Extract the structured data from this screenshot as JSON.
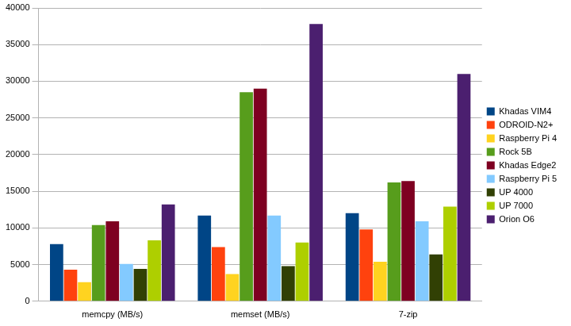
{
  "chart_data": {
    "type": "bar",
    "categories": [
      "memcpy (MB/s)",
      "memset (MB/s)",
      "7-zip"
    ],
    "series": [
      {
        "name": "Khadas VIM4",
        "color": "#004586",
        "values": [
          7800,
          11700,
          12000
        ]
      },
      {
        "name": "ODROID-N2+",
        "color": "#ff420e",
        "values": [
          4300,
          7400,
          9800
        ]
      },
      {
        "name": "Raspberry Pi 4",
        "color": "#ffd320",
        "values": [
          2600,
          3700,
          5400
        ]
      },
      {
        "name": "Rock 5B",
        "color": "#579d1c",
        "values": [
          10400,
          28500,
          16200
        ]
      },
      {
        "name": "Khadas Edge2",
        "color": "#7e0021",
        "values": [
          10900,
          29000,
          16400
        ]
      },
      {
        "name": "Raspberry Pi 5",
        "color": "#83caff",
        "values": [
          5100,
          11700,
          10900
        ]
      },
      {
        "name": "UP 4000",
        "color": "#314004",
        "values": [
          4400,
          4800,
          6400
        ]
      },
      {
        "name": "UP 7000",
        "color": "#aecf00",
        "values": [
          8300,
          8000,
          12900
        ]
      },
      {
        "name": "Orion O6",
        "color": "#4b1f6f",
        "values": [
          13200,
          37800,
          31000
        ]
      }
    ],
    "ylim": [
      0,
      40000
    ],
    "yticks": [
      0,
      5000,
      10000,
      15000,
      20000,
      25000,
      30000,
      35000,
      40000
    ],
    "grid": true,
    "legend": "right"
  }
}
